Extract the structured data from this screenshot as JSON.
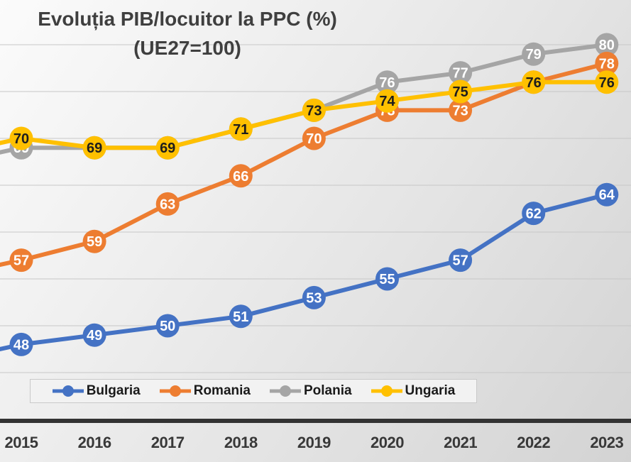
{
  "title": {
    "line1": "Evoluția PIB/locuitor la PPC (%)",
    "line2": "(UE27=100)"
  },
  "chart_data": {
    "type": "line",
    "title": "Evoluția PIB/locuitor la PPC (%) (UE27=100)",
    "categories": [
      "2015",
      "2016",
      "2017",
      "2018",
      "2019",
      "2020",
      "2021",
      "2022",
      "2023"
    ],
    "series": [
      {
        "name": "Bulgaria",
        "color": "#4472C4",
        "label_color": "#ffffff",
        "values": [
          48,
          49,
          50,
          51,
          53,
          55,
          57,
          62,
          64
        ]
      },
      {
        "name": "Romania",
        "color": "#ED7D31",
        "label_color": "#ffffff",
        "values": [
          57,
          59,
          63,
          66,
          70,
          73,
          73,
          76,
          78
        ]
      },
      {
        "name": "Polania",
        "color": "#A5A5A5",
        "label_color": "#ffffff",
        "values": [
          69,
          69,
          69,
          71,
          73,
          76,
          77,
          79,
          80
        ]
      },
      {
        "name": "Ungaria",
        "color": "#FFC000",
        "label_color": "#1d1d1d",
        "values": [
          70,
          69,
          69,
          71,
          73,
          74,
          75,
          76,
          76
        ]
      }
    ],
    "draw_order": [
      "Polania",
      "Romania",
      "Bulgaria",
      "Ungaria"
    ],
    "legend_order": [
      "Bulgaria",
      "Romania",
      "Polania",
      "Ungaria"
    ],
    "legend_position": "bottom",
    "data_labels": true,
    "grid": true,
    "gridline_values": [
      45,
      50,
      55,
      60,
      65,
      70,
      75,
      80
    ],
    "ylim": [
      44,
      82
    ],
    "xlim_note": "left edge of plot cropped at 2015"
  }
}
